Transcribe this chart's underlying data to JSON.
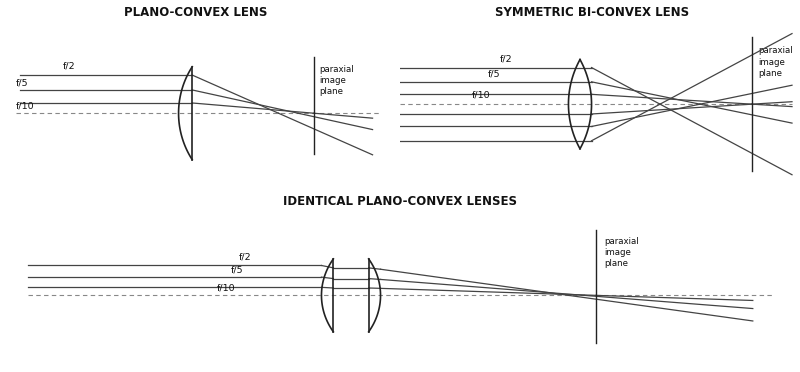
{
  "bg_color": "#ffffff",
  "line_color": "#222222",
  "ray_color": "#444444",
  "dash_color": "#888888",
  "title1": "PLANO-CONVEX LENS",
  "title2": "SYMMETRIC BI-CONVEX LENS",
  "title3": "IDENTICAL PLANO-CONVEX LENSES",
  "paraxial_label": "paraxial\nimage\nplane",
  "f_labels": [
    "f/2",
    "f/5",
    "f/10"
  ]
}
